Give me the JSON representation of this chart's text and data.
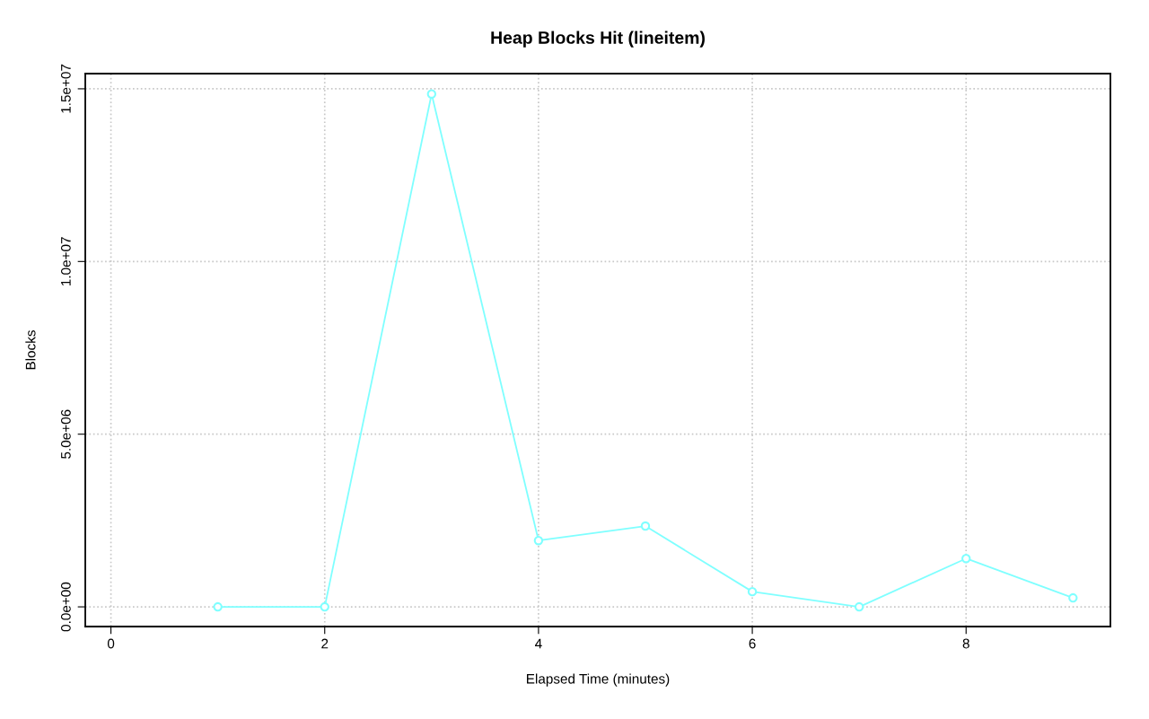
{
  "chart_data": {
    "type": "line",
    "title": "Heap Blocks Hit (lineitem)",
    "xlabel": "Elapsed Time (minutes)",
    "ylabel": "Blocks",
    "x": [
      1,
      2,
      3,
      4,
      5,
      6,
      7,
      8,
      9
    ],
    "series": [
      {
        "color": "#7fffff",
        "values": [
          0,
          0,
          14850000,
          1920000,
          2340000,
          440000,
          0,
          1400000,
          260000
        ]
      }
    ],
    "xlim": [
      -0.24,
      9.35
    ],
    "ylim": [
      -570000,
      15440000
    ],
    "xticks": [
      0,
      2,
      4,
      6,
      8
    ],
    "yticks": [
      {
        "value": 0,
        "label": "0.0e+00"
      },
      {
        "value": 5000000,
        "label": "5.0e+06"
      },
      {
        "value": 10000000,
        "label": "1.0e+07"
      },
      {
        "value": 15000000,
        "label": "1.5e+07"
      }
    ],
    "grid": true,
    "marker": "circle",
    "line_style": "solid"
  }
}
